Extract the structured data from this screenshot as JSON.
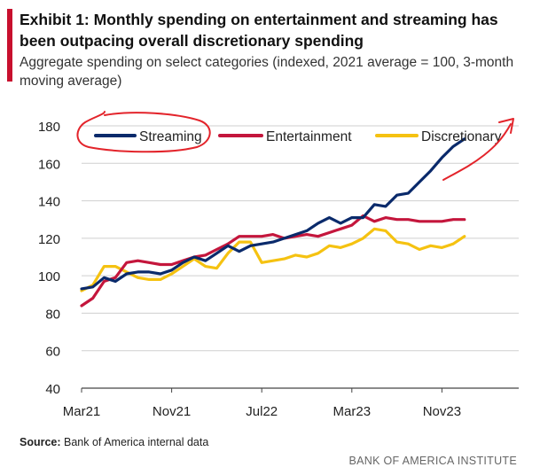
{
  "title": "Exhibit 1: Monthly spending on entertainment and streaming has been outpacing overall discretionary spending",
  "subtitle": "Aggregate spending on select categories (indexed, 2021 average = 100, 3-month moving average)",
  "source_label": "Source:",
  "source_text": " Bank of America internal data",
  "brand": "BANK OF AMERICA INSTITUTE",
  "colors": {
    "accent": "#c8102e",
    "annotation": "#e3242b"
  },
  "chart_data": {
    "type": "line",
    "ylim": [
      40,
      180
    ],
    "yticks": [
      40,
      60,
      80,
      100,
      120,
      140,
      160,
      180
    ],
    "x_tick_labels": [
      {
        "label": "Mar21",
        "index": 0
      },
      {
        "label": "Nov21",
        "index": 8
      },
      {
        "label": "Jul22",
        "index": 16
      },
      {
        "label": "Mar23",
        "index": 24
      },
      {
        "label": "Nov23",
        "index": 32
      }
    ],
    "x": [
      "Mar21",
      "Apr21",
      "May21",
      "Jun21",
      "Jul21",
      "Aug21",
      "Sep21",
      "Oct21",
      "Nov21",
      "Dec21",
      "Jan22",
      "Feb22",
      "Mar22",
      "Apr22",
      "May22",
      "Jun22",
      "Jul22",
      "Aug22",
      "Sep22",
      "Oct22",
      "Nov22",
      "Dec22",
      "Jan23",
      "Feb23",
      "Mar23",
      "Apr23",
      "May23",
      "Jun23",
      "Jul23",
      "Aug23",
      "Sep23",
      "Oct23",
      "Nov23",
      "Dec23",
      "Jan24"
    ],
    "legend_position": "top",
    "series": [
      {
        "name": "Streaming",
        "color": "#0a2a6b",
        "values": [
          93,
          94,
          99,
          97,
          101,
          102,
          102,
          101,
          103,
          107,
          110,
          108,
          112,
          116,
          113,
          116,
          117,
          118,
          120,
          122,
          124,
          128,
          131,
          128,
          131,
          131,
          138,
          137,
          143,
          144,
          150,
          156,
          163,
          169,
          173
        ]
      },
      {
        "name": "Entertainment",
        "color": "#c4163c",
        "values": [
          84,
          88,
          97,
          99,
          107,
          108,
          107,
          106,
          106,
          108,
          110,
          111,
          114,
          117,
          121,
          121,
          121,
          122,
          120,
          121,
          122,
          121,
          123,
          125,
          127,
          132,
          129,
          131,
          130,
          130,
          129,
          129,
          129,
          130,
          130
        ]
      },
      {
        "name": "Discretionary",
        "color": "#f5c211",
        "values": [
          92,
          95,
          105,
          105,
          102,
          99,
          98,
          98,
          101,
          105,
          109,
          105,
          104,
          112,
          118,
          118,
          107,
          108,
          109,
          111,
          110,
          112,
          116,
          115,
          117,
          120,
          125,
          124,
          118,
          117,
          114,
          116,
          115,
          117,
          121
        ]
      }
    ]
  }
}
